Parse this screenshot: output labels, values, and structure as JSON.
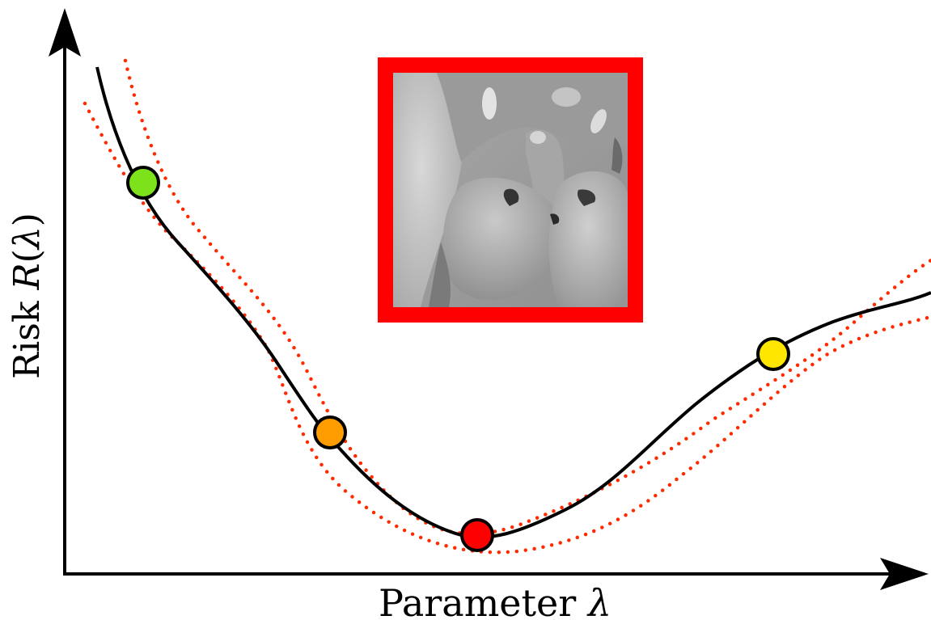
{
  "diagram": {
    "xlabel": {
      "text": "Parameter ",
      "symbol": "λ"
    },
    "ylabel": {
      "text": "Risk ",
      "symbol": "R",
      "open": "(",
      "arg": "λ",
      "close": ")"
    },
    "colors": {
      "axis": "#000000",
      "curve": "#000000",
      "bounds": "#ff2a00",
      "frame": "#ff0000",
      "markers": [
        "#7de21a",
        "#ff9d00",
        "#ff0000",
        "#ffe600"
      ]
    },
    "markers": [
      {
        "name": "green-marker",
        "color": "#7de21a"
      },
      {
        "name": "orange-marker",
        "color": "#ff9d00"
      },
      {
        "name": "red-minimum-marker",
        "color": "#ff0000"
      },
      {
        "name": "yellow-marker",
        "color": "#ffe600"
      }
    ],
    "inset": {
      "kind": "grayscale image patch",
      "frame_color": "#ff0000"
    }
  }
}
